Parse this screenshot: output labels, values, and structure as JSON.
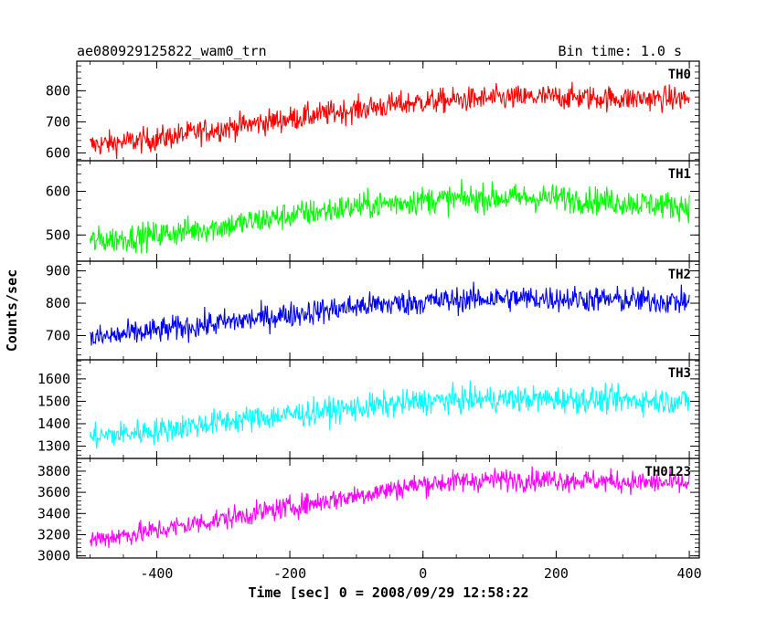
{
  "header": {
    "left_title": "ae080929125822_wam0_trn",
    "right_title": "Bin time: 1.0 s"
  },
  "chart_data": {
    "type": "line",
    "title": "ae080929125822_wam0_trn",
    "bin_time_label": "Bin time: 1.0 s",
    "xlabel": "Time [sec] 0 = 2008/09/29 12:58:22",
    "ylabel": "Counts/sec",
    "xlim": [
      -520,
      415
    ],
    "x_ticks": [
      -400,
      -200,
      0,
      200,
      400
    ],
    "x_range_data": [
      -500,
      400
    ],
    "bin_time_sec": 1.0,
    "grid": false,
    "legend": "none",
    "series": [
      {
        "name": "TH0",
        "color": "#ff0000",
        "ylim": [
          575,
          895
        ],
        "y_ticks": [
          600,
          700,
          800
        ],
        "trend_x": [
          -500,
          -400,
          -300,
          -200,
          -100,
          0,
          100,
          200,
          300,
          400
        ],
        "trend_y": [
          625,
          645,
          680,
          710,
          740,
          765,
          775,
          780,
          775,
          775
        ],
        "noise_amplitude": 38
      },
      {
        "name": "TH1",
        "color": "#00ff00",
        "ylim": [
          440,
          670
        ],
        "y_ticks": [
          500,
          600
        ],
        "trend_x": [
          -500,
          -400,
          -300,
          -200,
          -100,
          0,
          100,
          200,
          300,
          400
        ],
        "trend_y": [
          485,
          500,
          520,
          545,
          565,
          580,
          585,
          585,
          575,
          565
        ],
        "noise_amplitude": 30
      },
      {
        "name": "TH2",
        "color": "#0000ff",
        "ylim": [
          625,
          930
        ],
        "y_ticks": [
          700,
          800,
          900
        ],
        "trend_x": [
          -500,
          -400,
          -300,
          -200,
          -100,
          0,
          100,
          200,
          300,
          400
        ],
        "trend_y": [
          690,
          715,
          740,
          765,
          790,
          805,
          815,
          815,
          810,
          805
        ],
        "noise_amplitude": 38
      },
      {
        "name": "TH3",
        "color": "#00ffff",
        "ylim": [
          1245,
          1685
        ],
        "y_ticks": [
          1300,
          1400,
          1500,
          1600
        ],
        "trend_x": [
          -500,
          -400,
          -300,
          -200,
          -100,
          0,
          100,
          200,
          300,
          400
        ],
        "trend_y": [
          1340,
          1370,
          1410,
          1440,
          1470,
          1500,
          1510,
          1510,
          1505,
          1500
        ],
        "noise_amplitude": 55
      },
      {
        "name": "TH0123",
        "color": "#ff00ff",
        "ylim": [
          2980,
          3920
        ],
        "y_ticks": [
          3000,
          3200,
          3400,
          3600,
          3800
        ],
        "trend_x": [
          -500,
          -400,
          -300,
          -200,
          -100,
          0,
          100,
          200,
          300,
          400
        ],
        "trend_y": [
          3150,
          3240,
          3350,
          3460,
          3570,
          3680,
          3720,
          3720,
          3700,
          3680
        ],
        "noise_amplitude": 100
      }
    ]
  }
}
